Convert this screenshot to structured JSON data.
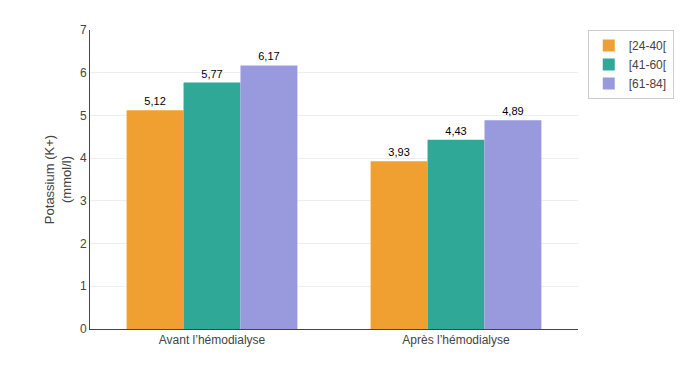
{
  "chart_data": {
    "type": "bar",
    "categories": [
      "Avant l’hémodialyse",
      "Après l’hémodialyse"
    ],
    "series": [
      {
        "name": "[24-40[",
        "color": "#F0A030",
        "values": [
          5.12,
          3.93
        ],
        "value_labels": [
          "5,12",
          "3,93"
        ]
      },
      {
        "name": "[41-60[",
        "color": "#30A898",
        "values": [
          5.77,
          4.43
        ],
        "value_labels": [
          "5,77",
          "4,43"
        ]
      },
      {
        "name": "[61-84]",
        "color": "#9999DD",
        "values": [
          6.17,
          4.89
        ],
        "value_labels": [
          "6,17",
          "4,89"
        ]
      }
    ],
    "y_label": "Potassium (K+)\n(mmol/l)",
    "ylim": [
      0,
      7
    ],
    "yticks": [
      0,
      1,
      2,
      3,
      4,
      5,
      6,
      7
    ],
    "grid": true,
    "legend": "upper right",
    "data_labels": true
  }
}
